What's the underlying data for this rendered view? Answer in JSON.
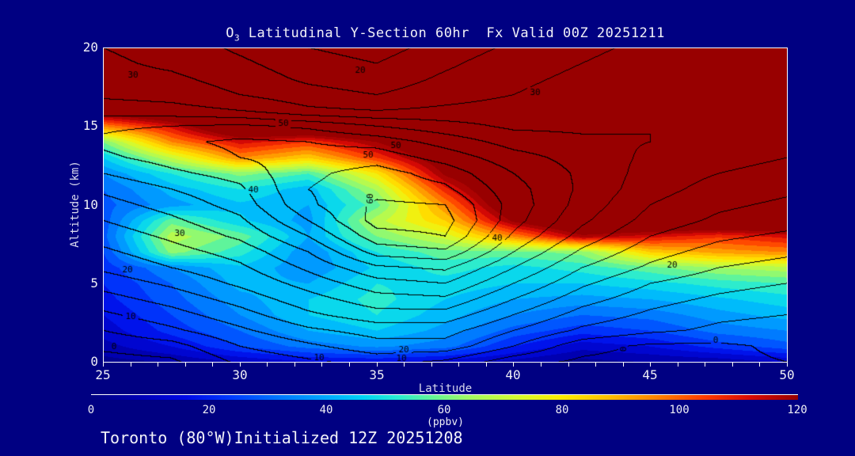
{
  "title": {
    "prefix": "O",
    "subscript": "3",
    "rest": " Latitudinal Y-Section 60hr  Fx Valid 00Z 20251211",
    "full": "O3 Latitudinal Y-Section 60hr  Fx Valid 00Z 20251211"
  },
  "footer": "Toronto (80°W)Initialized 12Z 20251208",
  "axes": {
    "x_label": "Latitude",
    "y_label": "Altitude (km)",
    "x_range": [
      25,
      50
    ],
    "y_range": [
      0,
      20
    ],
    "x_major_ticks": [
      25,
      30,
      35,
      40,
      45,
      50
    ],
    "x_minor_step": 1,
    "y_major_ticks": [
      0,
      5,
      10,
      15,
      20
    ]
  },
  "colorbar": {
    "ticks": [
      0,
      20,
      40,
      60,
      80,
      100,
      120
    ],
    "units": "(ppbv)",
    "range": [
      0,
      120
    ]
  },
  "colors": {
    "background": "#000082",
    "frame": "#FFFFFF",
    "contour_line": "#000000",
    "text": "#F2F2F8",
    "muted_text": "#DADAEE",
    "saturated_high": "#980000",
    "palette_stops": [
      [
        0,
        [
          0,
          0,
          130
        ]
      ],
      [
        8,
        [
          0,
          0,
          180
        ]
      ],
      [
        16,
        [
          0,
          10,
          230
        ]
      ],
      [
        24,
        [
          0,
          60,
          255
        ]
      ],
      [
        32,
        [
          0,
          120,
          255
        ]
      ],
      [
        40,
        [
          0,
          170,
          255
        ]
      ],
      [
        46,
        [
          0,
          210,
          245
        ]
      ],
      [
        52,
        [
          40,
          235,
          210
        ]
      ],
      [
        58,
        [
          100,
          245,
          150
        ]
      ],
      [
        64,
        [
          160,
          250,
          100
        ]
      ],
      [
        72,
        [
          210,
          250,
          50
        ]
      ],
      [
        80,
        [
          255,
          235,
          0
        ]
      ],
      [
        88,
        [
          255,
          190,
          0
        ]
      ],
      [
        96,
        [
          255,
          130,
          0
        ]
      ],
      [
        104,
        [
          255,
          60,
          0
        ]
      ],
      [
        112,
        [
          215,
          10,
          5
        ]
      ],
      [
        120,
        [
          152,
          0,
          0
        ]
      ]
    ]
  },
  "chart_data": {
    "type": "heatmap",
    "title": "O3 Latitudinal Y-Section 60hr  Fx Valid 00Z 20251211",
    "xlabel": "Latitude",
    "ylabel": "Altitude (km)",
    "units": "ppbv",
    "xlim": [
      25,
      50
    ],
    "ylim": [
      0,
      20
    ],
    "fill_band_interval": 5,
    "contour_interval": 5,
    "contour_label_interval": 10,
    "lat_values": [
      25,
      27.5,
      30,
      32.5,
      35,
      37.5,
      40,
      42.5,
      45,
      47.5,
      50
    ],
    "alt_values": [
      20,
      19,
      18,
      17,
      16,
      15,
      14,
      13,
      12,
      11,
      10,
      9,
      8,
      7,
      6,
      5,
      4,
      3,
      2,
      1,
      0
    ],
    "fill_ppbv": [
      [
        140,
        140,
        140,
        140,
        140,
        140,
        140,
        140,
        140,
        140,
        140
      ],
      [
        140,
        140,
        140,
        140,
        140,
        140,
        140,
        140,
        140,
        140,
        140
      ],
      [
        140,
        140,
        140,
        140,
        140,
        140,
        140,
        140,
        140,
        140,
        140
      ],
      [
        140,
        140,
        140,
        140,
        140,
        140,
        140,
        140,
        140,
        140,
        140
      ],
      [
        130,
        140,
        140,
        140,
        140,
        140,
        140,
        140,
        140,
        140,
        140
      ],
      [
        95,
        112,
        140,
        140,
        140,
        140,
        140,
        140,
        140,
        140,
        140
      ],
      [
        60,
        95,
        112,
        105,
        120,
        140,
        140,
        140,
        140,
        140,
        140
      ],
      [
        45,
        70,
        95,
        85,
        105,
        130,
        140,
        140,
        140,
        140,
        140
      ],
      [
        35,
        50,
        62,
        55,
        80,
        122,
        140,
        140,
        140,
        140,
        140
      ],
      [
        30,
        42,
        50,
        42,
        66,
        108,
        140,
        140,
        140,
        140,
        140
      ],
      [
        28,
        38,
        44,
        40,
        58,
        95,
        135,
        140,
        140,
        140,
        140
      ],
      [
        27,
        58,
        46,
        38,
        68,
        85,
        122,
        140,
        140,
        140,
        140
      ],
      [
        28,
        68,
        58,
        40,
        60,
        72,
        95,
        118,
        112,
        106,
        112
      ],
      [
        25,
        62,
        52,
        36,
        50,
        58,
        58,
        62,
        85,
        92,
        95
      ],
      [
        22,
        35,
        44,
        36,
        46,
        52,
        48,
        52,
        58,
        65,
        68
      ],
      [
        20,
        30,
        42,
        40,
        50,
        48,
        45,
        45,
        48,
        52,
        55
      ],
      [
        18,
        28,
        38,
        45,
        52,
        45,
        40,
        38,
        40,
        44,
        48
      ],
      [
        15,
        25,
        35,
        45,
        50,
        42,
        35,
        30,
        32,
        38,
        42
      ],
      [
        12,
        22,
        30,
        40,
        45,
        38,
        28,
        22,
        25,
        32,
        35
      ],
      [
        8,
        15,
        25,
        32,
        36,
        32,
        20,
        12,
        15,
        22,
        28
      ],
      [
        3,
        5,
        10,
        14,
        15,
        12,
        8,
        3,
        5,
        6,
        10
      ]
    ],
    "contour_field": [
      [
        30,
        28,
        24,
        20,
        18,
        22,
        26,
        29,
        31,
        32,
        32
      ],
      [
        31,
        29,
        26,
        22,
        20,
        24,
        28,
        30,
        32,
        33,
        33
      ],
      [
        32,
        31,
        28,
        24,
        22,
        26,
        29,
        31,
        33,
        34,
        34
      ],
      [
        34,
        33,
        30,
        27,
        25,
        28,
        30,
        32,
        34,
        35,
        34
      ],
      [
        38,
        37,
        35,
        31,
        30,
        31,
        32,
        33,
        35,
        35,
        34
      ],
      [
        44,
        45,
        46,
        44,
        40,
        37,
        34,
        34,
        35,
        34,
        33
      ],
      [
        46,
        49,
        51,
        50,
        48,
        43,
        38,
        36,
        35,
        33,
        32
      ],
      [
        44,
        47,
        50,
        52,
        53,
        48,
        42,
        38,
        34,
        32,
        30
      ],
      [
        40,
        44,
        47,
        54,
        57,
        53,
        45,
        39,
        33,
        30,
        28
      ],
      [
        36,
        40,
        44,
        55,
        58,
        56,
        47,
        39,
        32,
        28,
        26
      ],
      [
        33,
        37,
        42,
        54,
        61,
        60,
        48,
        38,
        30,
        26,
        24
      ],
      [
        30,
        34,
        39,
        50,
        62,
        62,
        47,
        36,
        28,
        24,
        22
      ],
      [
        27,
        31,
        36,
        45,
        58,
        60,
        44,
        33,
        25,
        21,
        19
      ],
      [
        24,
        28,
        32,
        40,
        52,
        54,
        40,
        29,
        22,
        18,
        16
      ],
      [
        21,
        25,
        29,
        36,
        44,
        46,
        35,
        25,
        19,
        15,
        13
      ],
      [
        17,
        21,
        26,
        32,
        38,
        40,
        30,
        21,
        15,
        12,
        10
      ],
      [
        13,
        17,
        22,
        28,
        33,
        34,
        25,
        17,
        12,
        9,
        7
      ],
      [
        9,
        13,
        18,
        24,
        28,
        28,
        20,
        13,
        9,
        6,
        5
      ],
      [
        5,
        9,
        14,
        19,
        22,
        22,
        15,
        9,
        6,
        4,
        3
      ],
      [
        1,
        3,
        10,
        14,
        18,
        18,
        10,
        2,
        -1,
        -1,
        1
      ],
      [
        -2,
        -1,
        6,
        9,
        12,
        9,
        2,
        -1,
        -2,
        -1,
        0
      ]
    ],
    "contour_labels": [
      {
        "lat": 26.1,
        "alt": 18.3,
        "text": "30",
        "rot": 0
      },
      {
        "lat": 34.4,
        "alt": 18.6,
        "text": "20",
        "rot": 0
      },
      {
        "lat": 40.8,
        "alt": 17.2,
        "text": "30",
        "rot": 0
      },
      {
        "lat": 31.6,
        "alt": 15.2,
        "text": "50",
        "rot": 0
      },
      {
        "lat": 35.7,
        "alt": 13.8,
        "text": "50",
        "rot": 0
      },
      {
        "lat": 34.7,
        "alt": 13.2,
        "text": "50",
        "rot": 0
      },
      {
        "lat": 30.5,
        "alt": 11.0,
        "text": "40",
        "rot": 0
      },
      {
        "lat": 34.75,
        "alt": 10.4,
        "text": "60",
        "rot": 90
      },
      {
        "lat": 39.4,
        "alt": 7.9,
        "text": "40",
        "rot": 0
      },
      {
        "lat": 27.8,
        "alt": 8.2,
        "text": "30",
        "rot": 0
      },
      {
        "lat": 25.9,
        "alt": 5.9,
        "text": "20",
        "rot": 0
      },
      {
        "lat": 26.0,
        "alt": 2.9,
        "text": "10",
        "rot": 0
      },
      {
        "lat": 25.4,
        "alt": 1.0,
        "text": "0",
        "rot": 0
      },
      {
        "lat": 32.9,
        "alt": 0.3,
        "text": "10",
        "rot": 0
      },
      {
        "lat": 36.0,
        "alt": 0.8,
        "text": "20",
        "rot": 0
      },
      {
        "lat": 35.9,
        "alt": 0.25,
        "text": "10",
        "rot": 0
      },
      {
        "lat": 45.8,
        "alt": 6.2,
        "text": "20",
        "rot": 0
      },
      {
        "lat": 47.4,
        "alt": 1.4,
        "text": "0",
        "rot": 0
      },
      {
        "lat": 44.0,
        "alt": 0.8,
        "text": "0",
        "rot": 90
      }
    ]
  }
}
